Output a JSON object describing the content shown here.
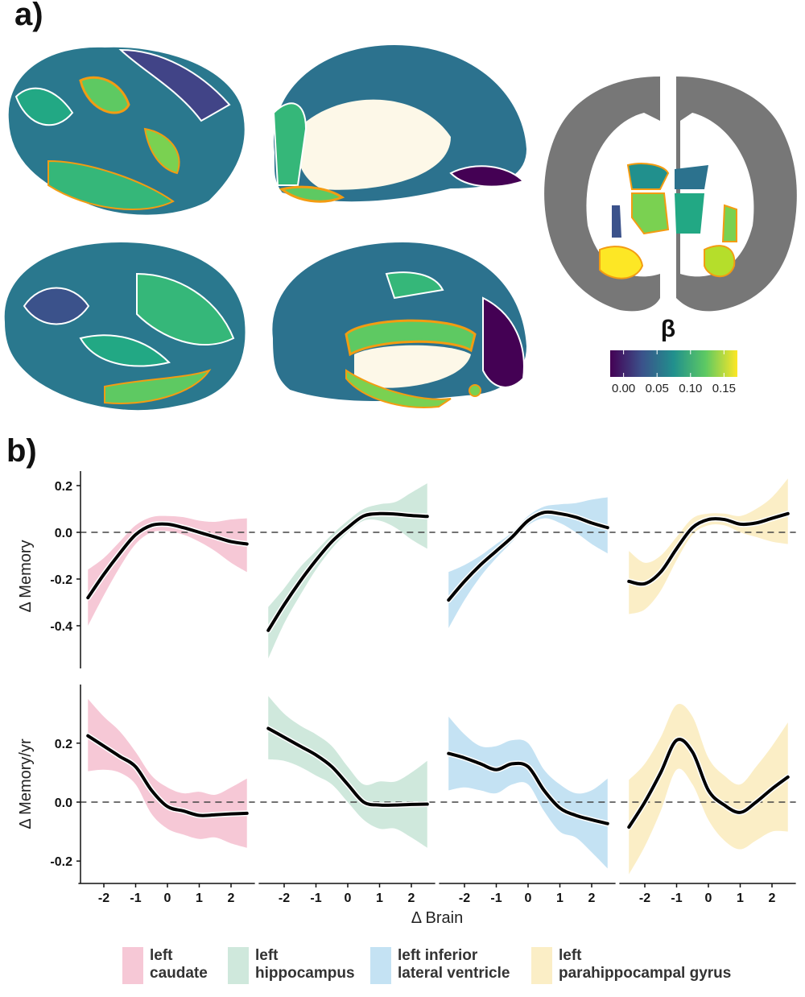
{
  "panel_labels": {
    "a": "a)",
    "b": "b)"
  },
  "colorbar": {
    "title": "β",
    "ticks": [
      "0.00",
      "0.05",
      "0.10",
      "0.15"
    ],
    "colormap": "viridis",
    "range": [
      -0.02,
      0.17
    ]
  },
  "highlight_color": "#f39c12",
  "axes": {
    "xlabel": "Δ Brain",
    "row_ylabels": [
      "Δ Memory",
      "Δ Memory/yr"
    ],
    "x_ticks": [
      "-2",
      "-1",
      "0",
      "1",
      "2"
    ],
    "row_y_ticks": [
      [
        "0.2",
        "0.0",
        "-0.2",
        "-0.4"
      ],
      [
        "0.2",
        "0.0",
        "-0.2"
      ]
    ],
    "reference_line_y": 0.0
  },
  "legend": [
    {
      "line1": "left",
      "line2": "caudate",
      "color": "#f6c8d6"
    },
    {
      "line1": "left",
      "line2": "hippocampus",
      "color": "#cfe8dc"
    },
    {
      "line1": "left inferior",
      "line2": "lateral ventricle",
      "color": "#c4e2f3"
    },
    {
      "line1": "left",
      "line2": "parahippocampal gyrus",
      "color": "#fbeec6"
    }
  ],
  "chart_data": [
    {
      "type": "line",
      "row": "Δ Memory",
      "region": "left caudate",
      "color": "#f6c8d6",
      "x": [
        -2.5,
        -2,
        -1.5,
        -1,
        -0.5,
        0,
        0.5,
        1,
        1.5,
        2,
        2.5
      ],
      "y": [
        -0.28,
        -0.18,
        -0.09,
        -0.01,
        0.03,
        0.035,
        0.02,
        0.0,
        -0.02,
        -0.04,
        -0.05
      ],
      "ci_low": [
        -0.4,
        -0.27,
        -0.15,
        -0.05,
        0.0,
        0.005,
        -0.01,
        -0.04,
        -0.08,
        -0.13,
        -0.17
      ],
      "ci_high": [
        -0.16,
        -0.11,
        -0.04,
        0.03,
        0.065,
        0.07,
        0.065,
        0.05,
        0.045,
        0.055,
        0.06
      ],
      "xlim": [
        -2.5,
        2.5
      ],
      "ylim": [
        -0.58,
        0.27
      ]
    },
    {
      "type": "line",
      "row": "Δ Memory",
      "region": "left hippocampus",
      "color": "#cfe8dc",
      "x": [
        -2.5,
        -2,
        -1.5,
        -1,
        -0.5,
        0,
        0.5,
        1,
        1.5,
        2,
        2.5
      ],
      "y": [
        -0.42,
        -0.31,
        -0.21,
        -0.12,
        -0.04,
        0.02,
        0.07,
        0.08,
        0.078,
        0.072,
        0.068
      ],
      "ci_low": [
        -0.54,
        -0.39,
        -0.27,
        -0.16,
        -0.07,
        0.0,
        0.05,
        0.05,
        0.02,
        -0.03,
        -0.07
      ],
      "ci_high": [
        -0.32,
        -0.24,
        -0.15,
        -0.08,
        -0.01,
        0.05,
        0.1,
        0.12,
        0.13,
        0.17,
        0.21
      ],
      "xlim": [
        -2.5,
        2.5
      ],
      "ylim": [
        -0.58,
        0.27
      ]
    },
    {
      "type": "line",
      "row": "Δ Memory",
      "region": "left inferior lateral ventricle",
      "color": "#c4e2f3",
      "x": [
        -2.5,
        -2,
        -1.5,
        -1,
        -0.5,
        0,
        0.5,
        1,
        1.5,
        2,
        2.5
      ],
      "y": [
        -0.29,
        -0.21,
        -0.14,
        -0.08,
        -0.02,
        0.05,
        0.085,
        0.08,
        0.065,
        0.04,
        0.02
      ],
      "ci_low": [
        -0.41,
        -0.29,
        -0.19,
        -0.11,
        -0.04,
        0.03,
        0.06,
        0.04,
        0.0,
        -0.05,
        -0.09
      ],
      "ci_high": [
        -0.17,
        -0.14,
        -0.1,
        -0.05,
        0.0,
        0.07,
        0.11,
        0.12,
        0.125,
        0.14,
        0.15
      ],
      "xlim": [
        -2.5,
        2.5
      ],
      "ylim": [
        -0.58,
        0.27
      ]
    },
    {
      "type": "line",
      "row": "Δ Memory",
      "region": "left parahippocampal gyrus",
      "color": "#fbeec6",
      "x": [
        -2.5,
        -2,
        -1.5,
        -1,
        -0.5,
        0,
        0.5,
        1,
        1.5,
        2,
        2.5
      ],
      "y": [
        -0.21,
        -0.22,
        -0.17,
        -0.07,
        0.02,
        0.055,
        0.055,
        0.035,
        0.04,
        0.06,
        0.08
      ],
      "ci_low": [
        -0.35,
        -0.33,
        -0.25,
        -0.12,
        -0.01,
        0.03,
        0.03,
        0.0,
        -0.02,
        -0.04,
        -0.05
      ],
      "ci_high": [
        -0.08,
        -0.13,
        -0.1,
        -0.02,
        0.06,
        0.08,
        0.08,
        0.07,
        0.1,
        0.15,
        0.23
      ],
      "xlim": [
        -2.5,
        2.5
      ],
      "ylim": [
        -0.58,
        0.27
      ]
    },
    {
      "type": "line",
      "row": "Δ Memory/yr",
      "region": "left caudate",
      "color": "#f6c8d6",
      "x": [
        -2.5,
        -2,
        -1.5,
        -1,
        -0.5,
        0,
        0.5,
        1,
        1.5,
        2,
        2.5
      ],
      "y": [
        0.225,
        0.19,
        0.155,
        0.12,
        0.04,
        -0.015,
        -0.03,
        -0.045,
        -0.043,
        -0.04,
        -0.038
      ],
      "ci_low": [
        0.105,
        0.11,
        0.1,
        0.06,
        -0.04,
        -0.09,
        -0.11,
        -0.125,
        -0.12,
        -0.14,
        -0.155
      ],
      "ci_high": [
        0.35,
        0.29,
        0.24,
        0.17,
        0.09,
        0.05,
        0.03,
        0.035,
        0.025,
        0.05,
        0.08
      ],
      "xlim": [
        -2.5,
        2.5
      ],
      "ylim": [
        -0.28,
        0.4
      ]
    },
    {
      "type": "line",
      "row": "Δ Memory/yr",
      "region": "left hippocampus",
      "color": "#cfe8dc",
      "x": [
        -2.5,
        -2,
        -1.5,
        -1,
        -0.5,
        0,
        0.5,
        1,
        1.5,
        2,
        2.5
      ],
      "y": [
        0.25,
        0.22,
        0.19,
        0.16,
        0.12,
        0.06,
        0.0,
        -0.01,
        -0.01,
        -0.008,
        -0.007
      ],
      "ci_low": [
        0.145,
        0.14,
        0.12,
        0.09,
        0.06,
        0.0,
        -0.06,
        -0.09,
        -0.09,
        -0.12,
        -0.155
      ],
      "ci_high": [
        0.36,
        0.3,
        0.26,
        0.23,
        0.19,
        0.12,
        0.06,
        0.07,
        0.07,
        0.1,
        0.14
      ],
      "xlim": [
        -2.5,
        2.5
      ],
      "ylim": [
        -0.28,
        0.4
      ]
    },
    {
      "type": "line",
      "row": "Δ Memory/yr",
      "region": "left inferior lateral ventricle",
      "color": "#c4e2f3",
      "x": [
        -2.5,
        -2,
        -1.5,
        -1,
        -0.5,
        0,
        0.5,
        1,
        1.5,
        2,
        2.5
      ],
      "y": [
        0.165,
        0.15,
        0.13,
        0.11,
        0.13,
        0.12,
        0.04,
        -0.02,
        -0.045,
        -0.06,
        -0.073
      ],
      "ci_low": [
        0.04,
        0.05,
        0.04,
        0.03,
        0.06,
        0.06,
        -0.03,
        -0.1,
        -0.12,
        -0.17,
        -0.225
      ],
      "ci_high": [
        0.29,
        0.23,
        0.19,
        0.19,
        0.21,
        0.2,
        0.11,
        0.06,
        0.03,
        0.04,
        0.08
      ],
      "xlim": [
        -2.5,
        2.5
      ],
      "ylim": [
        -0.28,
        0.4
      ]
    },
    {
      "type": "line",
      "row": "Δ Memory/yr",
      "region": "left parahippocampal gyrus",
      "color": "#fbeec6",
      "x": [
        -2.5,
        -2,
        -1.5,
        -1,
        -0.5,
        0,
        0.5,
        1,
        1.5,
        2,
        2.5
      ],
      "y": [
        -0.085,
        0.0,
        0.1,
        0.21,
        0.17,
        0.04,
        -0.01,
        -0.035,
        0.0,
        0.045,
        0.085
      ],
      "ci_low": [
        -0.245,
        -0.15,
        -0.03,
        0.11,
        0.06,
        -0.06,
        -0.13,
        -0.16,
        -0.13,
        -0.1,
        -0.1
      ],
      "ci_high": [
        0.075,
        0.13,
        0.22,
        0.33,
        0.29,
        0.15,
        0.09,
        0.06,
        0.12,
        0.19,
        0.27
      ],
      "xlim": [
        -2.5,
        2.5
      ],
      "ylim": [
        -0.28,
        0.4
      ]
    }
  ]
}
